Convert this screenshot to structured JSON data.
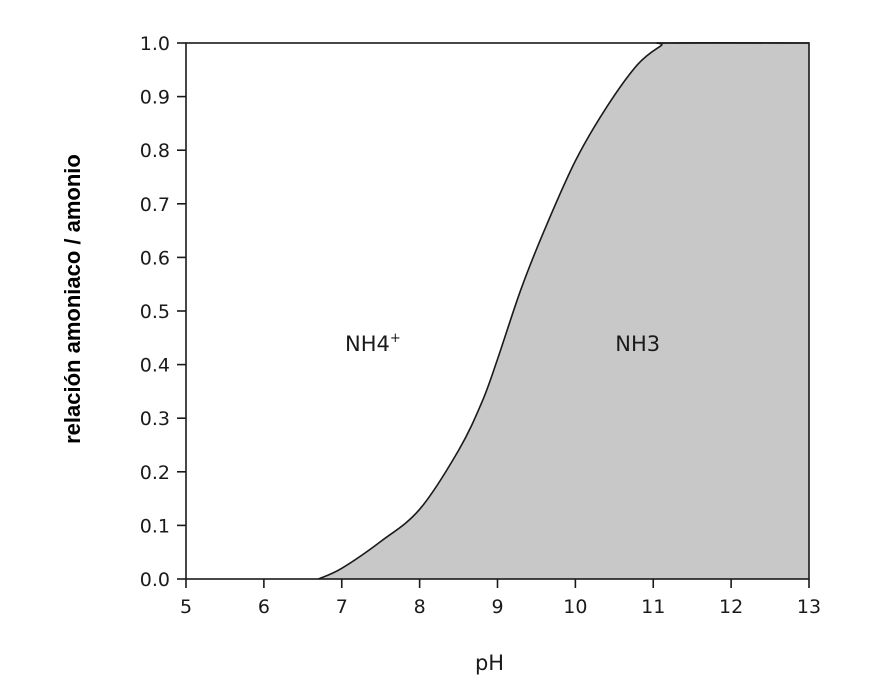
{
  "chart_data": {
    "type": "area",
    "xlabel": "pH",
    "ylabel": "relación amoniaco / amonio",
    "xlim": [
      5,
      13
    ],
    "ylim": [
      0,
      1
    ],
    "x_ticks": [
      "5",
      "6",
      "7",
      "8",
      "9",
      "10",
      "11",
      "12",
      "13"
    ],
    "y_ticks": [
      "0.0",
      "0.1",
      "0.2",
      "0.3",
      "0.4",
      "0.5",
      "0.6",
      "0.7",
      "0.8",
      "0.9",
      "1.0"
    ],
    "grid": false,
    "series": [
      {
        "x": [
          6.7,
          7.0,
          7.5,
          8.0,
          8.5,
          8.8,
          9.0,
          9.3,
          9.6,
          10.0,
          10.4,
          10.8,
          11.1,
          11.2,
          13.0
        ],
        "y": [
          0.0,
          0.02,
          0.07,
          0.13,
          0.24,
          0.33,
          0.41,
          0.54,
          0.65,
          0.78,
          0.88,
          0.96,
          0.995,
          1.0,
          1.0
        ]
      }
    ],
    "fill_color": "#c8c8c8",
    "line_color": "#1a1a1a",
    "annotations": [
      {
        "text": "NH4",
        "superscript": "+",
        "x": 7.4,
        "y": 0.44
      },
      {
        "text": "NH3",
        "x": 10.8,
        "y": 0.44
      }
    ]
  }
}
